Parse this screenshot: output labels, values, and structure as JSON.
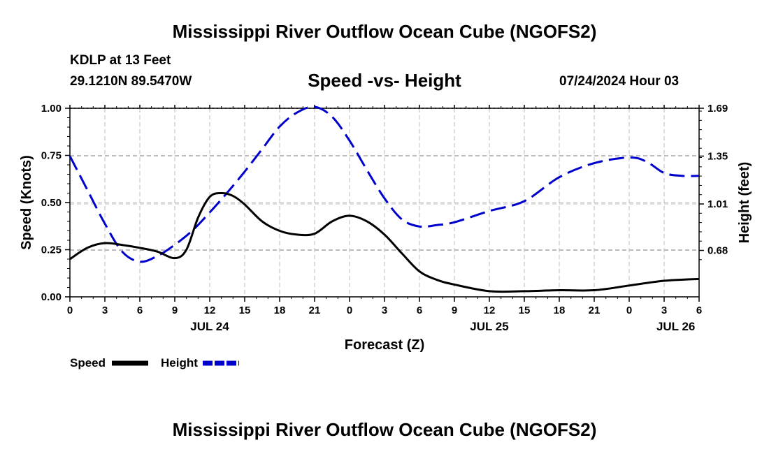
{
  "header": {
    "title": "Mississippi River Outflow Ocean Cube (NGOFS2)",
    "station": "KDLP at 13 Feet",
    "coords": "29.1210N  89.5470W",
    "datetime": "07/24/2024 Hour 03",
    "footer_title": "Mississippi River Outflow Ocean Cube (NGOFS2)"
  },
  "colors": {
    "speed": "#000000",
    "height": "#0000cc",
    "grid": "#bbbbbb"
  },
  "chart_data": {
    "type": "line",
    "title": "Speed -vs- Height",
    "xlabel": "Forecast (Z)",
    "ylabel": "Speed (Knots)",
    "y2label": "Height (feet)",
    "xlim": [
      0,
      54
    ],
    "ylim": [
      0,
      1.0
    ],
    "y2lim": [
      0.35,
      1.69
    ],
    "x_ticks": [
      0,
      3,
      6,
      9,
      12,
      15,
      18,
      21,
      24,
      27,
      30,
      33,
      36,
      39,
      42,
      45,
      48,
      51,
      54
    ],
    "x_tick_labels": [
      "0",
      "3",
      "6",
      "9",
      "12",
      "15",
      "18",
      "21",
      "0",
      "3",
      "6",
      "9",
      "12",
      "15",
      "18",
      "21",
      "0",
      "3",
      "6"
    ],
    "date_labels": [
      {
        "label": "JUL 24",
        "x": 12
      },
      {
        "label": "JUL 25",
        "x": 36
      },
      {
        "label": "JUL 26",
        "x": 52
      }
    ],
    "y_ticks": [
      0.0,
      0.25,
      0.5,
      0.75,
      1.0
    ],
    "y_tick_labels": [
      "0.00",
      "0.25",
      "0.50",
      "0.75",
      "1.00"
    ],
    "y2_ticks": [
      0.68,
      1.01,
      1.35,
      1.69
    ],
    "y2_tick_labels": [
      "0.68",
      "1.01",
      "1.35",
      "1.69"
    ],
    "legend": [
      {
        "name": "Speed",
        "style": "solid"
      },
      {
        "name": "Height",
        "style": "dashed"
      }
    ],
    "series": [
      {
        "name": "Speed",
        "axis": "left",
        "x": [
          0,
          1.5,
          3,
          4.5,
          6,
          7.5,
          9,
          10,
          11,
          12,
          13,
          14,
          15,
          16.5,
          18,
          19.5,
          21,
          22.5,
          24,
          25.5,
          27,
          28.5,
          30,
          31.5,
          33,
          36,
          39,
          42,
          45,
          48,
          51,
          54
        ],
        "values": [
          0.2,
          0.26,
          0.285,
          0.275,
          0.26,
          0.24,
          0.205,
          0.25,
          0.42,
          0.53,
          0.55,
          0.535,
          0.49,
          0.4,
          0.35,
          0.33,
          0.335,
          0.4,
          0.43,
          0.4,
          0.33,
          0.23,
          0.135,
          0.09,
          0.065,
          0.03,
          0.03,
          0.035,
          0.035,
          0.06,
          0.085,
          0.095
        ]
      },
      {
        "name": "Height",
        "axis": "right",
        "x": [
          0,
          1.5,
          3,
          4.5,
          6,
          7.5,
          9,
          10.5,
          12,
          13.5,
          15,
          16.5,
          18,
          19.5,
          21,
          22.5,
          24,
          25.5,
          27,
          28.5,
          30,
          31.5,
          33,
          36,
          39,
          42,
          45,
          48,
          49.5,
          51,
          52.5,
          54
        ],
        "values": [
          1.35,
          1.11,
          0.87,
          0.67,
          0.6,
          0.64,
          0.72,
          0.82,
          0.95,
          1.09,
          1.24,
          1.4,
          1.56,
          1.66,
          1.7,
          1.63,
          1.46,
          1.25,
          1.05,
          0.9,
          0.85,
          0.86,
          0.88,
          0.96,
          1.03,
          1.2,
          1.3,
          1.34,
          1.31,
          1.23,
          1.21,
          1.21
        ]
      }
    ]
  }
}
